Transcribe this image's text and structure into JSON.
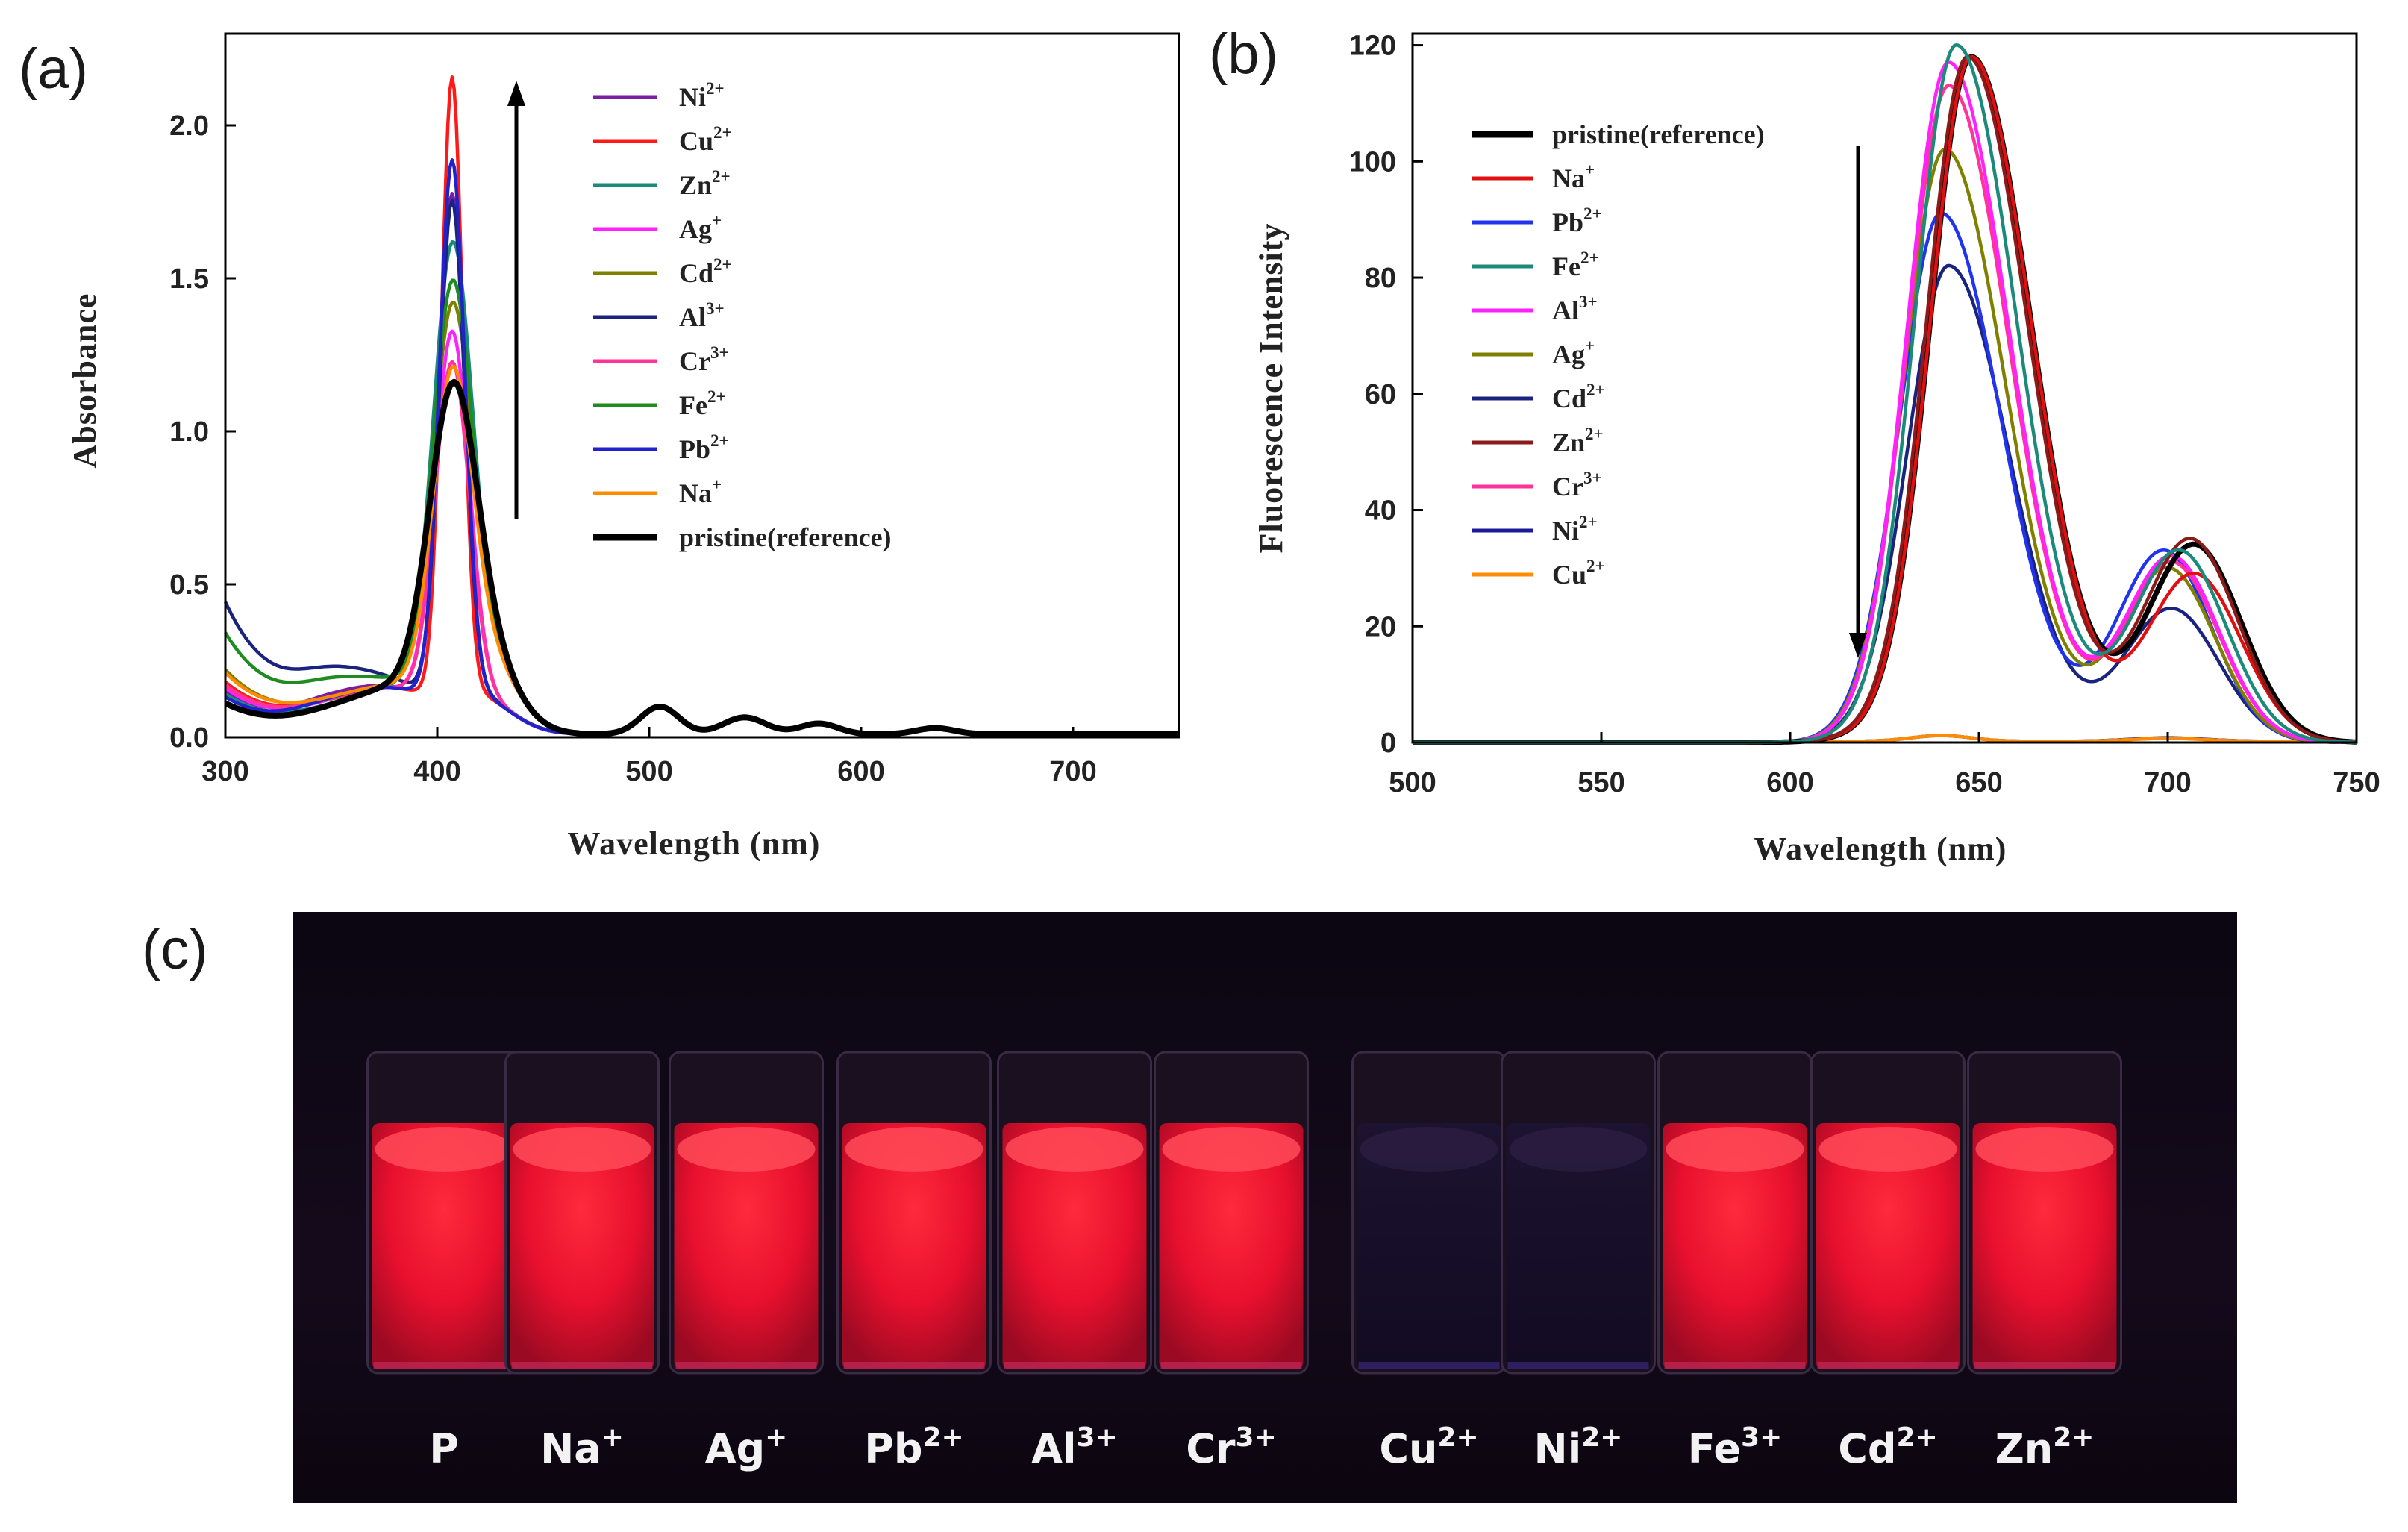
{
  "panels": {
    "a": "(a)",
    "b": "(b)",
    "c": "(c)"
  },
  "chart_data": [
    {
      "type": "line",
      "panel": "(a)",
      "xlabel": "Wavelength (nm)",
      "ylabel": "Absorbance",
      "xlim": [
        300,
        750
      ],
      "ylim": [
        0,
        2.3
      ],
      "xticks": [
        "300",
        "400",
        "500",
        "600",
        "700"
      ],
      "yticks": [
        "0.0",
        "0.5",
        "1.0",
        "1.5",
        "2.0"
      ],
      "legend_position": "top-right",
      "arrow": "up",
      "series": [
        {
          "name": "Ni",
          "sup": "2+",
          "color": "#7b1fa2",
          "peak": 1.75,
          "uv300": 0.14,
          "shoulder": 0.08,
          "width": 6
        },
        {
          "name": "Cu",
          "sup": "2+",
          "color": "#ff1a1a",
          "peak": 2.13,
          "uv300": 0.17,
          "shoulder": 0.06,
          "width": 5
        },
        {
          "name": "Zn",
          "sup": "2+",
          "color": "#1b8a7a",
          "peak": 1.45,
          "uv300": 0.13,
          "shoulder": 0.05,
          "width": 9
        },
        {
          "name": "Ag",
          "sup": "+",
          "color": "#ff22ff",
          "peak": 1.3,
          "uv300": 0.15,
          "shoulder": 0.06,
          "width": 8
        },
        {
          "name": "Cd",
          "sup": "2+",
          "color": "#808000",
          "peak": 1.25,
          "uv300": 0.21,
          "shoulder": 0.05,
          "width": 9
        },
        {
          "name": "Al",
          "sup": "3+",
          "color": "#1a237e",
          "peak": 1.72,
          "uv300": 0.43,
          "shoulder": 0.12,
          "width": 6
        },
        {
          "name": "Cr",
          "sup": "3+",
          "color": "#ff3399",
          "peak": 1.2,
          "uv300": 0.16,
          "shoulder": 0.06,
          "width": 8
        },
        {
          "name": "Fe",
          "sup": "2+",
          "color": "#1e8c1e",
          "peak": 1.32,
          "uv300": 0.33,
          "shoulder": 0.1,
          "width": 9
        },
        {
          "name": "Pb",
          "sup": "2+",
          "color": "#2222cc",
          "peak": 1.86,
          "uv300": 0.12,
          "shoulder": 0.07,
          "width": 6
        },
        {
          "name": "Na",
          "sup": "+",
          "color": "#ff8c00",
          "peak": 1.04,
          "uv300": 0.2,
          "shoulder": 0.06,
          "width": 9
        },
        {
          "name": "pristine(reference)",
          "sup": "",
          "color": "#000000",
          "peak": 0.99,
          "uv300": 0.1,
          "shoulder": 0.05,
          "width": 11
        }
      ]
    },
    {
      "type": "line",
      "panel": "(b)",
      "xlabel": "Wavelength (nm)",
      "ylabel": "Fluorescence Intensity",
      "xlim": [
        500,
        750
      ],
      "ylim": [
        0,
        122
      ],
      "xticks": [
        "500",
        "550",
        "600",
        "650",
        "700",
        "750"
      ],
      "yticks": [
        "0",
        "20",
        "40",
        "60",
        "80",
        "100",
        "120"
      ],
      "legend_position": "top-left",
      "arrow": "down",
      "series": [
        {
          "name": "pristine(reference)",
          "sup": "",
          "color": "#000000",
          "peak_nm": 648,
          "peak": 118,
          "peak2": 34
        },
        {
          "name": "Na",
          "sup": "+",
          "color": "#e01010",
          "peak_nm": 648,
          "peak": 118,
          "peak2": 29
        },
        {
          "name": "Pb",
          "sup": "2+",
          "color": "#2233ee",
          "peak_nm": 640,
          "peak": 91,
          "peak2": 33
        },
        {
          "name": "Fe",
          "sup": "2+",
          "color": "#1b8a7a",
          "peak_nm": 644,
          "peak": 120,
          "peak2": 33
        },
        {
          "name": "Al",
          "sup": "3+",
          "color": "#ff22ff",
          "peak_nm": 642,
          "peak": 117,
          "peak2": 32
        },
        {
          "name": "Ag",
          "sup": "+",
          "color": "#808000",
          "peak_nm": 641,
          "peak": 102,
          "peak2": 30
        },
        {
          "name": "Cd",
          "sup": "2+",
          "color": "#1a237e",
          "peak_nm": 642,
          "peak": 82,
          "peak2": 23
        },
        {
          "name": "Zn",
          "sup": "2+",
          "color": "#8b1a1a",
          "peak_nm": 647,
          "peak": 118,
          "peak2": 35
        },
        {
          "name": "Cr",
          "sup": "3+",
          "color": "#ff3399",
          "peak_nm": 642,
          "peak": 113,
          "peak2": 31
        },
        {
          "name": "Ni",
          "sup": "2+",
          "color": "#1a1a99",
          "peak_nm": 0,
          "peak": 1,
          "peak2": 0.6
        },
        {
          "name": "Cu",
          "sup": "2+",
          "color": "#ff8c00",
          "peak_nm": 0,
          "peak": 1,
          "peak2": 0.5
        }
      ]
    }
  ],
  "photo": {
    "vials": [
      {
        "label": "P",
        "sup": "",
        "glow": true
      },
      {
        "label": "Na",
        "sup": "+",
        "glow": true
      },
      {
        "label": "Ag",
        "sup": "+",
        "glow": true
      },
      {
        "label": "Pb",
        "sup": "2+",
        "glow": true
      },
      {
        "label": "Al",
        "sup": "3+",
        "glow": true
      },
      {
        "label": "Cr",
        "sup": "3+",
        "glow": true
      },
      {
        "label": "Cu",
        "sup": "2+",
        "glow": false
      },
      {
        "label": "Ni",
        "sup": "2+",
        "glow": false
      },
      {
        "label": "Fe",
        "sup": "3+",
        "glow": true
      },
      {
        "label": "Cd",
        "sup": "2+",
        "glow": true
      },
      {
        "label": "Zn",
        "sup": "2+",
        "glow": true
      }
    ]
  }
}
